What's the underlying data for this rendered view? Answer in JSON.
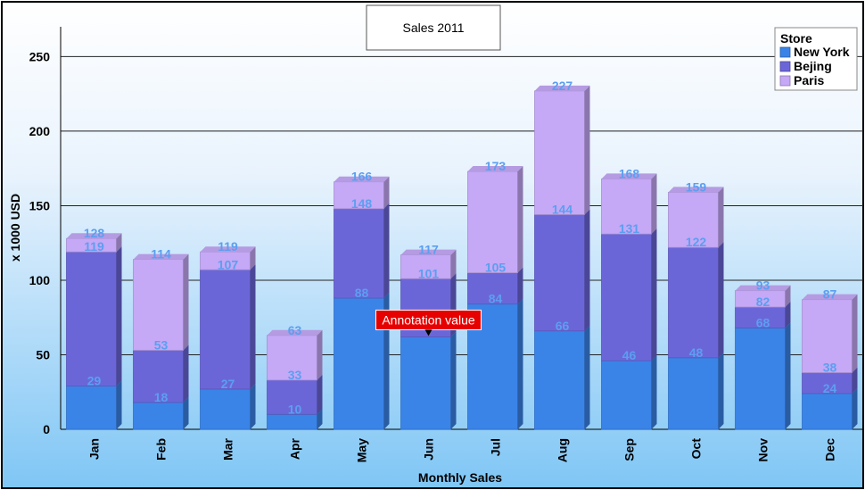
{
  "chart_data": {
    "type": "bar",
    "stacked": true,
    "title": "Sales 2011",
    "xlabel": "Monthly Sales",
    "ylabel": "x 1000 USD",
    "ylim": [
      0,
      270
    ],
    "yticks": [
      0,
      50,
      100,
      150,
      200,
      250
    ],
    "grid": true,
    "legend_position": "top-right",
    "legend_title": "Store",
    "categories": [
      "Jan",
      "Feb",
      "Mar",
      "Apr",
      "May",
      "Jun",
      "Jul",
      "Aug",
      "Sep",
      "Oct",
      "Nov",
      "Dec"
    ],
    "series": [
      {
        "name": "New York",
        "color": "#3a84e8",
        "values": [
          29,
          18,
          27,
          10,
          88,
          62,
          84,
          66,
          46,
          48,
          68,
          24
        ]
      },
      {
        "name": "Bejing",
        "color": "#6b66d8",
        "values": [
          90,
          35,
          80,
          23,
          60,
          39,
          21,
          78,
          85,
          74,
          14,
          14
        ]
      },
      {
        "name": "Paris",
        "color": "#c5a8f6",
        "values": [
          9,
          61,
          12,
          30,
          18,
          16,
          68,
          83,
          37,
          37,
          11,
          49
        ]
      }
    ],
    "cumulative_labels": [
      [
        29,
        119,
        128
      ],
      [
        18,
        53,
        114
      ],
      [
        27,
        107,
        119
      ],
      [
        10,
        33,
        63
      ],
      [
        88,
        148,
        166
      ],
      [
        null,
        101,
        117
      ],
      [
        84,
        105,
        173
      ],
      [
        66,
        144,
        227
      ],
      [
        46,
        131,
        168
      ],
      [
        48,
        122,
        159
      ],
      [
        68,
        82,
        93
      ],
      [
        24,
        38,
        87
      ]
    ],
    "annotation": {
      "text": "Annotation value",
      "category": "Jun",
      "value": 62,
      "color": "#e60000"
    }
  }
}
